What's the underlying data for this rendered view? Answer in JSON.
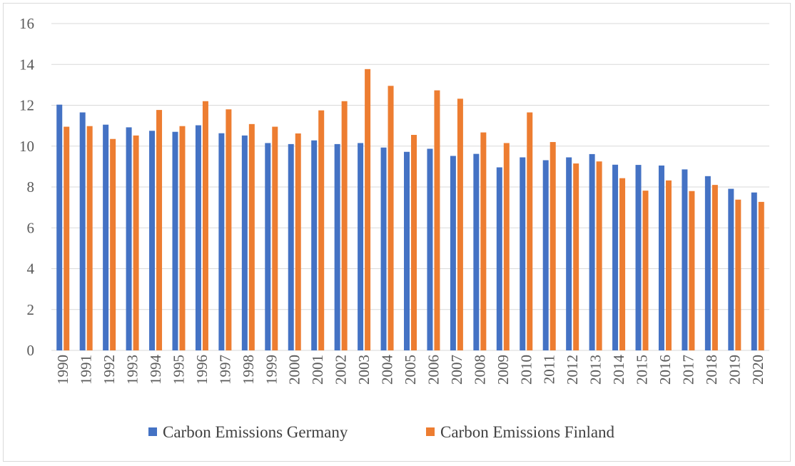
{
  "chart_data": {
    "type": "bar",
    "categories": [
      "1990",
      "1991",
      "1992",
      "1993",
      "1994",
      "1995",
      "1996",
      "1997",
      "1998",
      "1999",
      "2000",
      "2001",
      "2002",
      "2003",
      "2004",
      "2005",
      "2006",
      "2007",
      "2008",
      "2009",
      "2010",
      "2011",
      "2012",
      "2013",
      "2014",
      "2015",
      "2016",
      "2017",
      "2018",
      "2019",
      "2020"
    ],
    "series": [
      {
        "name": "Carbon Emissions Germany",
        "color": "#4472C4",
        "values": [
          12.03,
          11.65,
          11.05,
          10.92,
          10.75,
          10.7,
          11.02,
          10.63,
          10.52,
          10.15,
          10.1,
          10.28,
          10.1,
          10.15,
          9.93,
          9.72,
          9.87,
          9.52,
          9.62,
          8.96,
          9.45,
          9.31,
          9.45,
          9.61,
          9.09,
          9.08,
          9.05,
          8.86,
          8.53,
          7.91,
          7.73
        ]
      },
      {
        "name": "Carbon Emissions Finland",
        "color": "#ED7D31",
        "values": [
          10.95,
          10.98,
          10.35,
          10.52,
          11.77,
          10.98,
          12.2,
          11.8,
          11.08,
          10.95,
          10.62,
          11.75,
          12.2,
          13.77,
          12.95,
          10.55,
          12.73,
          12.32,
          10.67,
          10.15,
          11.65,
          10.2,
          9.15,
          9.25,
          8.43,
          7.82,
          8.32,
          7.8,
          8.1,
          7.38,
          7.27
        ]
      }
    ],
    "ylim": [
      0,
      16
    ],
    "yticks": [
      0,
      2,
      4,
      6,
      8,
      10,
      12,
      14,
      16
    ],
    "grid": true,
    "legend_position": "bottom",
    "title": "",
    "xlabel": "",
    "ylabel": ""
  }
}
